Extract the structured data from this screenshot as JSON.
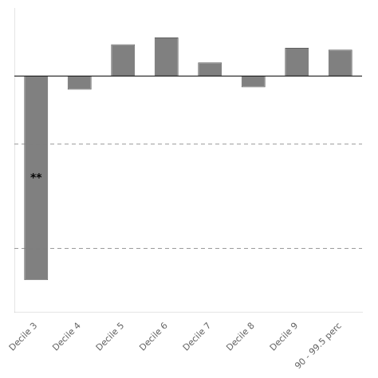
{
  "chart_data": {
    "type": "bar",
    "categories": [
      "Decile 3",
      "Decile 4",
      "Decile 5",
      "Decile 6",
      "Decile 7",
      "Decile 8",
      "Decile 9",
      "90 - 99.5 perc"
    ],
    "values": [
      -4.5,
      -0.3,
      0.7,
      0.85,
      0.3,
      -0.25,
      0.62,
      0.58
    ],
    "color": "#808080",
    "ylim": [
      -5.2,
      1.5
    ],
    "yticks": [],
    "grid": false,
    "tick_labels": "x",
    "reference_lines": [
      -1.5,
      -3.8
    ],
    "annotations": [
      {
        "text": "**",
        "category": "Decile 3"
      }
    ]
  }
}
